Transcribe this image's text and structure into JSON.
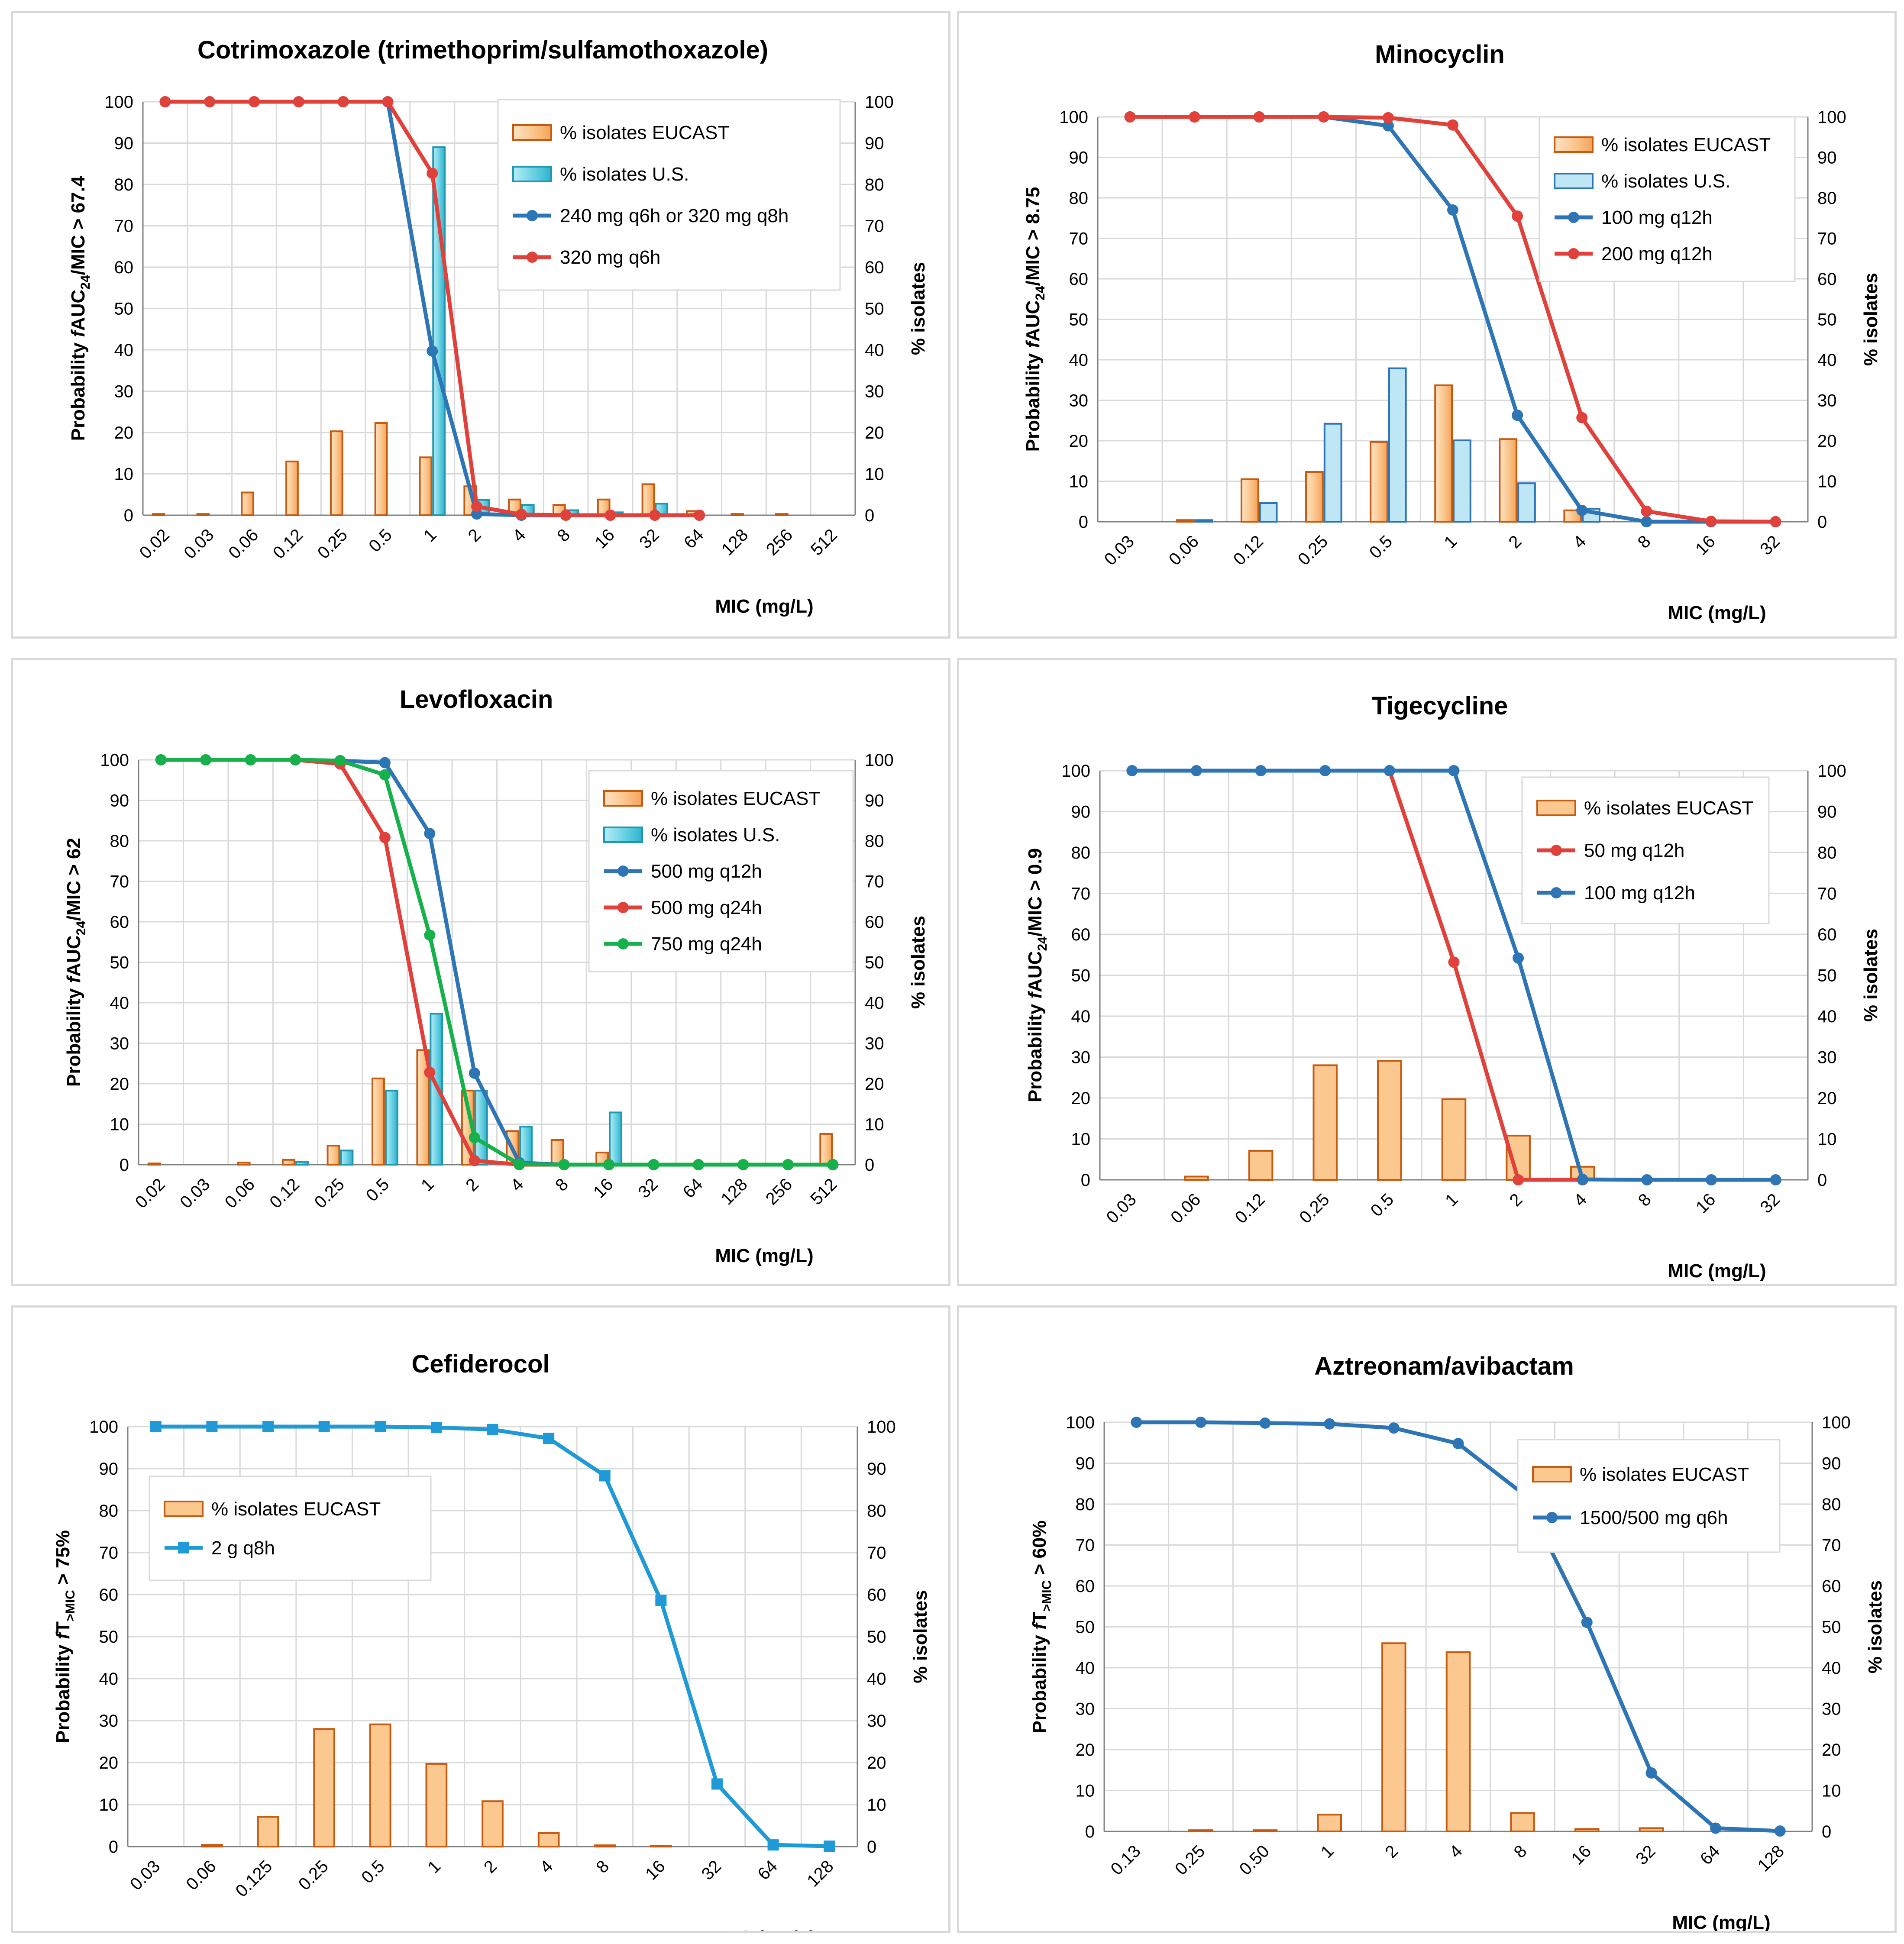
{
  "colors": {
    "eucast_fill": "#fbc890",
    "eucast_stroke": "#c55a11",
    "us_fill": "#6fd3e6",
    "us_stroke": "#1f97b0",
    "blue": "#2e75b6",
    "red": "#e0413a",
    "green": "#16b14a",
    "sky": "#1f9ad6",
    "grid": "#d9d9d9",
    "axis": "#7f7f7f"
  },
  "chart_data": [
    {
      "id": "cotrimoxazole",
      "type": "bar+line",
      "title": "Cotrimoxazole (trimethoprim/sulfamothoxazole)",
      "xlabel": "MIC (mg/L)",
      "ylabel_left": "Probability fAUC24/MIC > 67.4",
      "ylabel_left_parts": [
        "Probability ",
        "f",
        "AUC",
        "24",
        "/MIC > 67.4"
      ],
      "ylabel_right": "% isolates",
      "ylim": [
        0,
        100
      ],
      "yticks": [
        0,
        10,
        20,
        30,
        40,
        50,
        60,
        70,
        80,
        90,
        100
      ],
      "categories": [
        "0.02",
        "0.03",
        "0.06",
        "0.12",
        "0.25",
        "0.5",
        "1",
        "2",
        "4",
        "8",
        "16",
        "32",
        "64",
        "128",
        "256",
        "512"
      ],
      "bars": [
        {
          "name": "% isolates EUCAST",
          "style": "eucast",
          "values": [
            0.3,
            0.3,
            5.5,
            13,
            20.3,
            22.3,
            14,
            7,
            3.8,
            2.5,
            3.8,
            7.5,
            1,
            0.3,
            0.3,
            0
          ]
        },
        {
          "name": "% isolates U.S.",
          "style": "us",
          "values": [
            0,
            0,
            0,
            0,
            0,
            0,
            89,
            3.7,
            2.5,
            1.2,
            0.7,
            2.8,
            0,
            0,
            0,
            0
          ]
        }
      ],
      "lines": [
        {
          "name": "240 mg q6h or 320 mg q8h",
          "style": "blue",
          "marker": "circle",
          "values": [
            100,
            100,
            100,
            100,
            100,
            100,
            39.7,
            0.3,
            0,
            0,
            0,
            0,
            0,
            null,
            null,
            null
          ]
        },
        {
          "name": "320 mg q6h",
          "style": "red",
          "marker": "circle",
          "values": [
            100,
            100,
            100,
            100,
            100,
            100,
            82.7,
            2.1,
            0.2,
            0,
            0,
            0,
            0,
            null,
            null,
            null
          ]
        }
      ],
      "legend": [
        "% isolates EUCAST",
        "% isolates U.S.",
        "240 mg q6h or 320 mg q8h",
        "320 mg q6h"
      ],
      "legend_position": "top-right"
    },
    {
      "id": "minocyclin",
      "type": "bar+line",
      "title": "Minocyclin",
      "xlabel": "MIC (mg/L)",
      "ylabel_left": "Probability fAUC24/MIC > 8.75",
      "ylabel_left_parts": [
        "Probability ",
        "f",
        "AUC",
        "24",
        "/MIC > 8.75"
      ],
      "ylabel_right": "% isolates",
      "ylim": [
        0,
        100
      ],
      "yticks": [
        0,
        10,
        20,
        30,
        40,
        50,
        60,
        70,
        80,
        90,
        100
      ],
      "categories": [
        "0.03",
        "0.06",
        "0.12",
        "0.25",
        "0.5",
        "1",
        "2",
        "4",
        "8",
        "16",
        "32"
      ],
      "bars": [
        {
          "name": "% isolates EUCAST",
          "style": "eucast",
          "values": [
            0,
            0.4,
            10.5,
            12.3,
            19.7,
            33.7,
            20.4,
            2.8,
            0,
            0,
            0
          ]
        },
        {
          "name": "% isolates U.S.",
          "style": "uslight",
          "values": [
            0,
            0.4,
            4.6,
            24.2,
            37.9,
            20.1,
            9.5,
            3.2,
            0,
            0,
            0
          ]
        }
      ],
      "lines": [
        {
          "name": "100 mg q12h",
          "style": "blue",
          "marker": "circle",
          "values": [
            100,
            100,
            100,
            100,
            97.8,
            77,
            26.3,
            2.8,
            0,
            0,
            0
          ]
        },
        {
          "name": "200 mg q12h",
          "style": "red",
          "marker": "circle",
          "values": [
            100,
            100,
            100,
            100,
            99.8,
            98,
            75.5,
            25.7,
            2.6,
            0.1,
            0
          ]
        }
      ],
      "legend": [
        "% isolates EUCAST",
        "% isolates U.S.",
        "100 mg q12h",
        "200 mg q12h"
      ],
      "legend_position": "top-right"
    },
    {
      "id": "levofloxacin",
      "type": "bar+line",
      "title": "Levofloxacin",
      "xlabel": "MIC (mg/L)",
      "ylabel_left": "Probability fAUC24/MIC > 62",
      "ylabel_left_parts": [
        "Probability ",
        "f",
        "AUC",
        "24",
        "/MIC > 62"
      ],
      "ylabel_right": "% isolates",
      "ylim": [
        0,
        100
      ],
      "yticks": [
        0,
        10,
        20,
        30,
        40,
        50,
        60,
        70,
        80,
        90,
        100
      ],
      "categories": [
        "0.02",
        "0.03",
        "0.06",
        "0.12",
        "0.25",
        "0.5",
        "1",
        "2",
        "4",
        "8",
        "16",
        "32",
        "64",
        "128",
        "256",
        "512"
      ],
      "bars": [
        {
          "name": "% isolates EUCAST",
          "style": "eucast",
          "values": [
            0.3,
            0,
            0.5,
            1.2,
            4.7,
            21.3,
            28.3,
            18.3,
            8.3,
            6.1,
            3,
            0,
            0,
            0,
            0,
            7.6
          ]
        },
        {
          "name": "% isolates U.S.",
          "style": "us",
          "values": [
            0,
            0,
            0,
            0.7,
            3.5,
            18.3,
            37.3,
            18.3,
            9.4,
            0,
            12.9,
            0,
            0,
            0,
            0,
            0
          ]
        }
      ],
      "lines": [
        {
          "name": "500 mg q12h",
          "style": "blue",
          "marker": "circle",
          "values": [
            100,
            100,
            100,
            100,
            99.8,
            99.3,
            81.8,
            22.6,
            0.5,
            0,
            0,
            0,
            0,
            0,
            0,
            0
          ]
        },
        {
          "name": "500 mg q24h",
          "style": "red",
          "marker": "circle",
          "values": [
            100,
            100,
            100,
            100,
            99,
            80.8,
            22.8,
            1,
            0,
            0,
            0,
            0,
            0,
            0,
            0,
            0
          ]
        },
        {
          "name": "750 mg q24h",
          "style": "green",
          "marker": "circle",
          "values": [
            100,
            100,
            100,
            100,
            99.8,
            96.3,
            56.7,
            6.7,
            0.1,
            0,
            0,
            0,
            0,
            0,
            0,
            0
          ]
        }
      ],
      "legend": [
        "% isolates EUCAST",
        "% isolates U.S.",
        "500 mg q12h",
        "500 mg q24h",
        "750 mg q24h"
      ],
      "legend_position": "top-right"
    },
    {
      "id": "tigecycline",
      "type": "bar+line",
      "title": "Tigecycline",
      "xlabel": "MIC (mg/L)",
      "ylabel_left": "Probability fAUC24/MIC > 0.9",
      "ylabel_left_parts": [
        "Probability ",
        "f",
        "AUC",
        "24",
        "/MIC > 0.9"
      ],
      "ylabel_right": "% isolates",
      "ylim": [
        0,
        100
      ],
      "yticks": [
        0,
        10,
        20,
        30,
        40,
        50,
        60,
        70,
        80,
        90,
        100
      ],
      "categories": [
        "0.03",
        "0.06",
        "0.12",
        "0.25",
        "0.5",
        "1",
        "2",
        "4",
        "8",
        "16",
        "32"
      ],
      "bars": [
        {
          "name": "% isolates EUCAST",
          "style": "eucastsolid",
          "values": [
            0,
            0.8,
            7.1,
            28,
            29.1,
            19.7,
            10.8,
            3.2,
            0,
            0,
            0
          ]
        }
      ],
      "lines": [
        {
          "name": "50  mg q12h",
          "style": "red",
          "marker": "circle",
          "values": [
            null,
            null,
            null,
            null,
            100,
            53.2,
            0,
            0,
            null,
            null,
            null
          ]
        },
        {
          "name": "100 mg q12h",
          "style": "blue",
          "marker": "circle",
          "values": [
            100,
            100,
            100,
            100,
            100,
            100,
            54.2,
            0.1,
            0,
            0,
            0
          ]
        }
      ],
      "legend": [
        "% isolates EUCAST",
        "50  mg q12h",
        "100 mg q12h"
      ],
      "legend_position": "top-right"
    },
    {
      "id": "cefiderocol",
      "type": "bar+line",
      "title": "Cefiderocol",
      "xlabel": "MIC (mg/L)",
      "ylabel_left": "Probability fT>MIC > 75%",
      "ylabel_left_parts": [
        "Probability ",
        "f",
        "T",
        ">MIC",
        " > 75%"
      ],
      "ylabel_right": "% isolates",
      "ylim": [
        0,
        100
      ],
      "yticks": [
        0,
        10,
        20,
        30,
        40,
        50,
        60,
        70,
        80,
        90,
        100
      ],
      "categories": [
        "0.03",
        "0.06",
        "0.125",
        "0.25",
        "0.5",
        "1",
        "2",
        "4",
        "8",
        "16",
        "32",
        "64",
        "128"
      ],
      "bars": [
        {
          "name": "% isolates EUCAST",
          "style": "eucastsolid",
          "values": [
            0,
            0.4,
            7.1,
            28,
            29.1,
            19.7,
            10.8,
            3.2,
            0.3,
            0.2,
            0,
            0,
            0
          ]
        }
      ],
      "lines": [
        {
          "name": "2 g q8h",
          "style": "sky",
          "marker": "square",
          "values": [
            100,
            100,
            100,
            100,
            100,
            99.8,
            99.3,
            97.2,
            88.3,
            58.6,
            14.9,
            0.4,
            0.1
          ]
        }
      ],
      "legend": [
        "% isolates EUCAST",
        "2 g q8h"
      ],
      "legend_position": "top-left"
    },
    {
      "id": "aztreonam",
      "type": "bar+line",
      "title": "Aztreonam/avibactam",
      "xlabel": "MIC (mg/L)",
      "ylabel_left": "Probability fT>MIC > 60%",
      "ylabel_left_parts": [
        "Probability ",
        "f",
        "T",
        ">MIC",
        " > 60%"
      ],
      "ylabel_right": "% isolates",
      "ylim": [
        0,
        100
      ],
      "yticks": [
        0,
        10,
        20,
        30,
        40,
        50,
        60,
        70,
        80,
        90,
        100
      ],
      "categories": [
        "0.13",
        "0.25",
        "0.50",
        "1",
        "2",
        "4",
        "8",
        "16",
        "32",
        "64",
        "128"
      ],
      "bars": [
        {
          "name": "% isolates EUCAST",
          "style": "eucastsolid",
          "values": [
            0,
            0.3,
            0.3,
            4.1,
            46,
            43.8,
            4.5,
            0.6,
            0.8,
            0,
            0
          ]
        }
      ],
      "lines": [
        {
          "name": "1500/500 mg q6h",
          "style": "blue",
          "marker": "circle",
          "values": [
            100,
            100,
            99.8,
            99.6,
            98.6,
            94.8,
            82.6,
            51.1,
            14.3,
            0.8,
            0.1
          ]
        }
      ],
      "legend": [
        "% isolates EUCAST",
        "1500/500 mg q6h"
      ],
      "legend_position": "top-right"
    }
  ]
}
